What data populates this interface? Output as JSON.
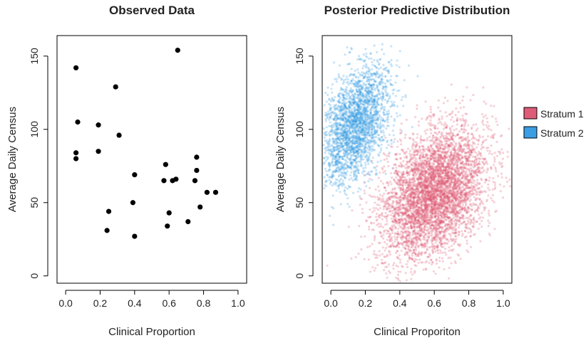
{
  "chart_data": [
    {
      "type": "scatter",
      "title": "Observed Data",
      "xlabel": "Clinical Proportion",
      "ylabel": "Average Daily Census",
      "xlim": [
        -0.05,
        1.05
      ],
      "ylim": [
        -5,
        164
      ],
      "xticks": [
        0.0,
        0.2,
        0.4,
        0.6,
        0.8,
        1.0
      ],
      "xtick_labels": [
        "0.0",
        "0.2",
        "0.4",
        "0.6",
        "0.8",
        "1.0"
      ],
      "yticks": [
        0,
        50,
        100,
        150
      ],
      "ytick_labels": [
        "0",
        "50",
        "100",
        "150"
      ],
      "grid": false,
      "point_color": "#000000",
      "points": [
        {
          "x": 0.06,
          "y": 142
        },
        {
          "x": 0.07,
          "y": 105
        },
        {
          "x": 0.06,
          "y": 84
        },
        {
          "x": 0.06,
          "y": 80
        },
        {
          "x": 0.19,
          "y": 103
        },
        {
          "x": 0.19,
          "y": 85
        },
        {
          "x": 0.29,
          "y": 129
        },
        {
          "x": 0.31,
          "y": 96
        },
        {
          "x": 0.4,
          "y": 69
        },
        {
          "x": 0.39,
          "y": 50
        },
        {
          "x": 0.25,
          "y": 44
        },
        {
          "x": 0.24,
          "y": 31
        },
        {
          "x": 0.4,
          "y": 27
        },
        {
          "x": 0.57,
          "y": 65
        },
        {
          "x": 0.58,
          "y": 76
        },
        {
          "x": 0.62,
          "y": 65
        },
        {
          "x": 0.64,
          "y": 66
        },
        {
          "x": 0.6,
          "y": 43
        },
        {
          "x": 0.59,
          "y": 34
        },
        {
          "x": 0.65,
          "y": 154
        },
        {
          "x": 0.71,
          "y": 37
        },
        {
          "x": 0.75,
          "y": 65
        },
        {
          "x": 0.76,
          "y": 81
        },
        {
          "x": 0.76,
          "y": 72
        },
        {
          "x": 0.78,
          "y": 47
        },
        {
          "x": 0.82,
          "y": 57
        },
        {
          "x": 0.87,
          "y": 57
        }
      ]
    },
    {
      "type": "scatter",
      "title": "Posterior Predictive Distribution",
      "xlabel": "Clinical Proporiton",
      "ylabel": "Average Daily Census",
      "xlim": [
        -0.05,
        1.05
      ],
      "ylim": [
        -5,
        164
      ],
      "xticks": [
        0.0,
        0.2,
        0.4,
        0.6,
        0.8,
        1.0
      ],
      "xtick_labels": [
        "0.0",
        "0.2",
        "0.4",
        "0.6",
        "0.8",
        "1.0"
      ],
      "yticks": [
        0,
        50,
        100,
        150
      ],
      "ytick_labels": [
        "0",
        "50",
        "100",
        "150"
      ],
      "grid": false,
      "legend_position": "right",
      "series": [
        {
          "name": "Stratum 1",
          "color": "#dd5d78",
          "distribution": {
            "center_x": 0.6,
            "center_y": 57,
            "sd_x": 0.15,
            "sd_y": 22,
            "correlation": 0.35,
            "n_points": 5000
          }
        },
        {
          "name": "Stratum 2",
          "color": "#3b9ee3",
          "distribution": {
            "center_x": 0.14,
            "center_y": 103,
            "sd_x": 0.1,
            "sd_y": 20,
            "correlation": 0.45,
            "n_points": 2500
          }
        }
      ]
    }
  ]
}
